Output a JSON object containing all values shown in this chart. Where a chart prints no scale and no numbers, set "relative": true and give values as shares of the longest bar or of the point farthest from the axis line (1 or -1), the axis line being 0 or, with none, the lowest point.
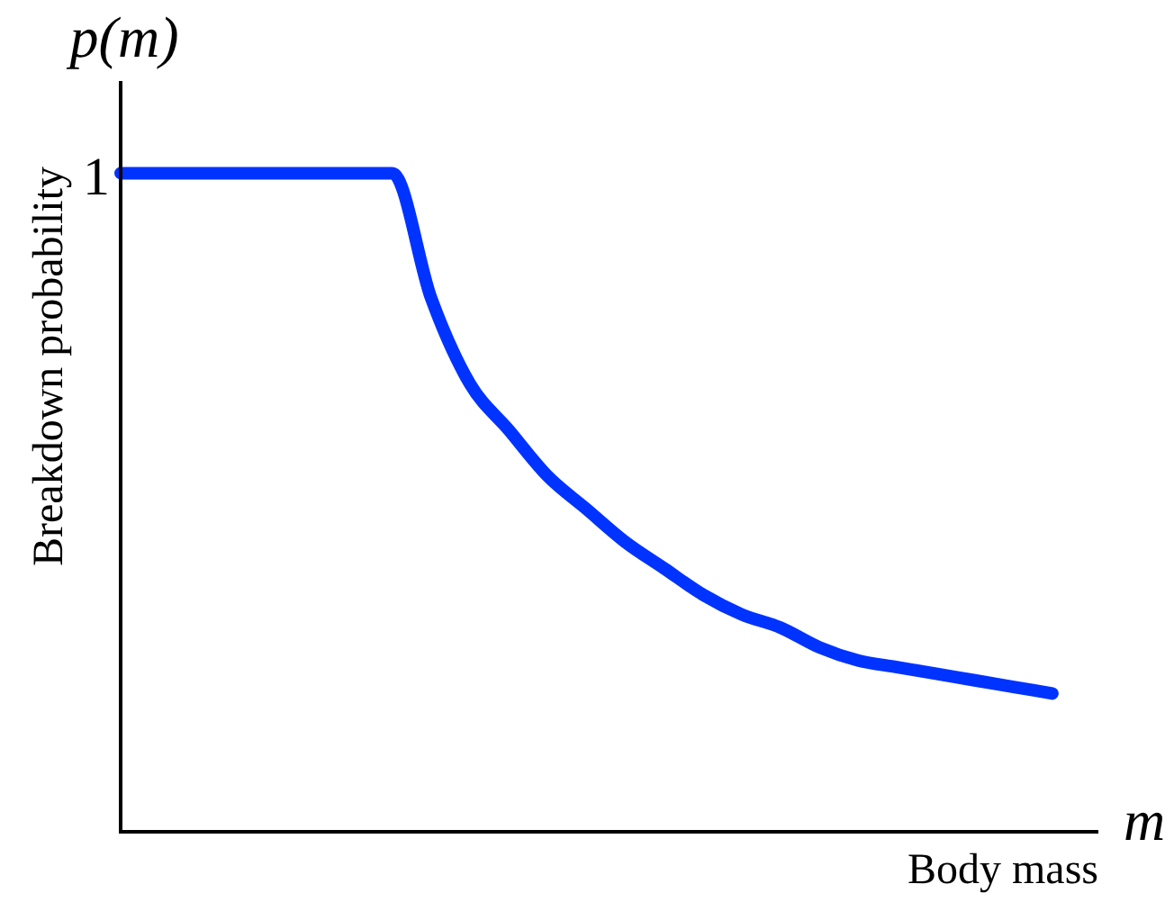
{
  "chart_data": {
    "type": "line",
    "ylabel": "Breakdown probability",
    "xlabel": "Body mass",
    "relative": true,
    "annotations": [
      "p(m)",
      "m",
      "1"
    ],
    "categories": [
      null,
      null,
      null,
      null,
      null,
      null,
      null,
      null,
      null,
      null,
      null,
      null,
      null,
      null,
      null,
      null,
      null,
      null,
      null,
      null,
      null,
      null,
      null,
      null,
      null,
      null
    ],
    "series": [
      {
        "color": "#0033ff",
        "values": [
          1,
          1,
          1,
          1,
          1,
          1,
          1,
          1,
          0.81,
          0.68,
          0.61,
          0.54,
          0.49,
          0.44,
          0.4,
          0.36,
          0.33,
          0.31,
          0.28,
          0.26,
          0.25,
          0.24,
          0.23,
          0.22,
          0.21,
          null
        ]
      }
    ]
  }
}
